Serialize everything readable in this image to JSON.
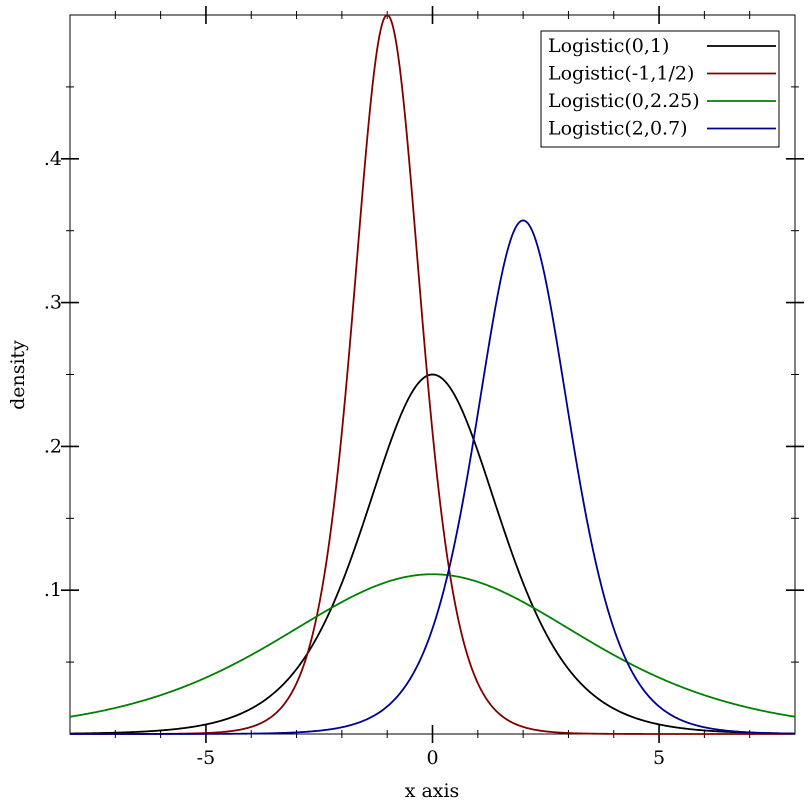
{
  "chart_data": {
    "type": "line",
    "title": "",
    "xlabel": "x axis",
    "ylabel": "density",
    "xlim": [
      -8,
      8
    ],
    "ylim": [
      0,
      0.5
    ],
    "grid": false,
    "legend_position": "top-right",
    "x_ticks": [
      {
        "value": -5,
        "label": "-5"
      },
      {
        "value": 0,
        "label": "0"
      },
      {
        "value": 5,
        "label": "5"
      }
    ],
    "y_ticks": [
      {
        "value": 0.1,
        "label": ".1"
      },
      {
        "value": 0.2,
        "label": ".2"
      },
      {
        "value": 0.3,
        "label": ".3"
      },
      {
        "value": 0.4,
        "label": ".4"
      }
    ],
    "series": [
      {
        "name": "Logistic(0,1)",
        "distribution": "logistic",
        "location": 0,
        "scale": 1,
        "color": "#000000"
      },
      {
        "name": "Logistic(-1,1/2)",
        "distribution": "logistic",
        "location": -1,
        "scale": 0.5,
        "color": "#800000"
      },
      {
        "name": "Logistic(0,2.25)",
        "distribution": "logistic",
        "location": 0,
        "scale": 2.25,
        "color": "#008000"
      },
      {
        "name": "Logistic(2,0.7)",
        "distribution": "logistic",
        "location": 2,
        "scale": 0.7,
        "color": "#000090"
      }
    ]
  }
}
